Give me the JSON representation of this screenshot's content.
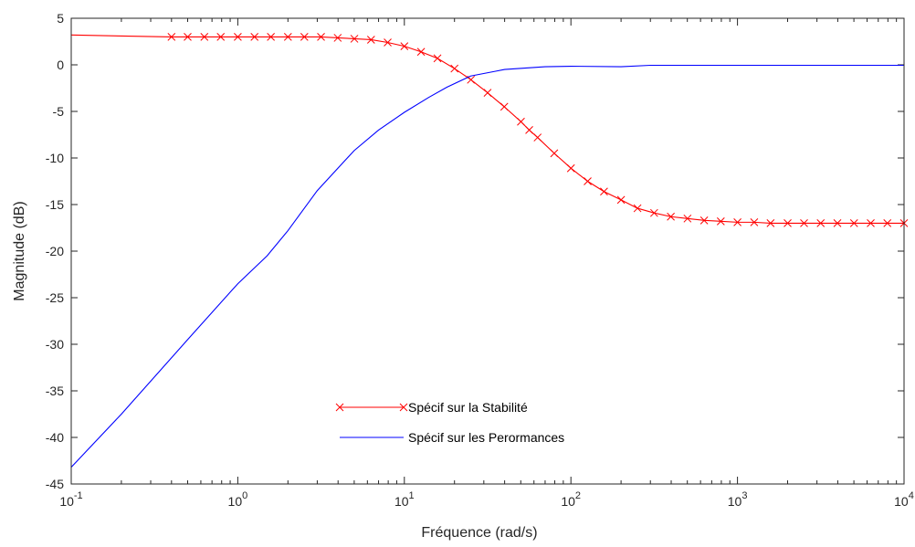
{
  "chart_data": {
    "type": "line",
    "title": "",
    "xlabel": "Fréquence (rad/s)",
    "ylabel": "Magnitude (dB)",
    "xscale": "log",
    "xlim": [
      0.1,
      10000
    ],
    "ylim": [
      -45,
      5
    ],
    "y_ticks": [
      5,
      0,
      -5,
      -10,
      -15,
      -20,
      -25,
      -30,
      -35,
      -40,
      -45
    ],
    "x_ticks": [
      {
        "base": "10",
        "exp": "-1",
        "value": 0.1
      },
      {
        "base": "10",
        "exp": "0",
        "value": 1
      },
      {
        "base": "10",
        "exp": "1",
        "value": 10
      },
      {
        "base": "10",
        "exp": "2",
        "value": 100
      },
      {
        "base": "10",
        "exp": "3",
        "value": 1000
      },
      {
        "base": "10",
        "exp": "4",
        "value": 10000
      }
    ],
    "grid": false,
    "legend_position": "bottom-center",
    "series": [
      {
        "name": "Spécif sur la Stabilité",
        "color": "#ff0000",
        "marker": "x",
        "x": [
          0.1,
          0.4,
          0.5,
          0.63,
          0.79,
          1.0,
          1.26,
          1.58,
          2.0,
          2.51,
          3.16,
          3.98,
          5.01,
          6.31,
          7.94,
          10,
          12.6,
          15.8,
          20,
          25.1,
          31.6,
          39.8,
          50.1,
          56.2,
          63.1,
          79.4,
          100,
          126,
          158,
          200,
          251,
          316,
          398,
          501,
          631,
          794,
          1000,
          1260,
          1580,
          2000,
          2510,
          3160,
          3980,
          5010,
          6310,
          7940,
          10000
        ],
        "y": [
          3.2,
          3.0,
          3.0,
          3.0,
          3.0,
          3.0,
          3.0,
          3.0,
          3.0,
          3.0,
          3.0,
          2.9,
          2.8,
          2.7,
          2.4,
          2.0,
          1.4,
          0.7,
          -0.4,
          -1.6,
          -3.0,
          -4.5,
          -6.1,
          -7.0,
          -7.8,
          -9.5,
          -11.1,
          -12.5,
          -13.6,
          -14.5,
          -15.4,
          -15.9,
          -16.3,
          -16.5,
          -16.7,
          -16.8,
          -16.9,
          -16.9,
          -17.0,
          -17.0,
          -17.0,
          -17.0,
          -17.0,
          -17.0,
          -17.0,
          -17.0,
          -17.0
        ],
        "markers_from": 1
      },
      {
        "name": "Spécif sur les Perormances",
        "color": "#0000ff",
        "marker": "none",
        "x": [
          0.1,
          0.2,
          0.5,
          1.0,
          1.5,
          2.0,
          3.0,
          5.0,
          7.0,
          10,
          14,
          18,
          25,
          35,
          40,
          70,
          100,
          200,
          300,
          1000,
          10000
        ],
        "y": [
          -43.2,
          -37.5,
          -29.5,
          -23.5,
          -20.5,
          -17.8,
          -13.5,
          -9.2,
          -7.0,
          -5.1,
          -3.5,
          -2.4,
          -1.2,
          -0.7,
          -0.5,
          -0.2,
          -0.15,
          -0.2,
          -0.05,
          -0.05,
          -0.05
        ]
      }
    ]
  }
}
